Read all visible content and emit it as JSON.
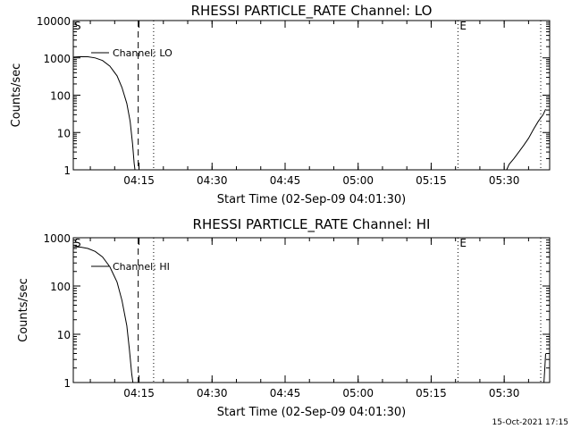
{
  "footer": "15-Oct-2021 17:15",
  "chart_data": [
    {
      "type": "line",
      "title": "RHESSI PARTICLE_RATE Channel: LO",
      "xlabel": "Start Time (02-Sep-09 04:01:30)",
      "ylabel": "Counts/sec",
      "yscale": "log",
      "xlim": [
        "04:01:30",
        "05:39:20"
      ],
      "ylim": [
        1,
        10000
      ],
      "xticks": [
        "04:15",
        "04:30",
        "04:45",
        "05:00",
        "05:15",
        "05:30"
      ],
      "yticks": [
        "1",
        "10",
        "100",
        "1000",
        "10000"
      ],
      "legend_position": "top-left",
      "legend": "Channel: LO",
      "markers": {
        "start": "S",
        "end": "E"
      },
      "vlines": [
        {
          "x": "04:14:50",
          "style": "dashed"
        },
        {
          "x": "04:18:00",
          "style": "dotted"
        },
        {
          "x": "05:20:30",
          "style": "dotted",
          "label": "E"
        },
        {
          "x": "05:37:30",
          "style": "dotted"
        }
      ],
      "series": [
        {
          "name": "Channel: LO",
          "segments": [
            [
              [
                "04:01:30",
                1050
              ],
              [
                "04:03:00",
                1080
              ],
              [
                "04:04:30",
                1070
              ],
              [
                "04:06:00",
                1000
              ],
              [
                "04:07:30",
                850
              ],
              [
                "04:09:00",
                600
              ],
              [
                "04:10:30",
                330
              ],
              [
                "04:11:30",
                160
              ],
              [
                "04:12:30",
                60
              ],
              [
                "04:13:10",
                20
              ],
              [
                "04:13:40",
                5
              ],
              [
                "04:14:00",
                1.5
              ],
              [
                "04:14:10",
                1
              ]
            ],
            [
              [
                "05:30:30",
                1
              ],
              [
                "05:31:00",
                1.4
              ],
              [
                "05:32:00",
                2
              ],
              [
                "05:33:00",
                3
              ],
              [
                "05:34:00",
                4.5
              ],
              [
                "05:35:00",
                7
              ],
              [
                "05:36:00",
                12
              ],
              [
                "05:37:00",
                20
              ],
              [
                "05:38:00",
                30
              ],
              [
                "05:38:30",
                42
              ]
            ]
          ]
        }
      ]
    },
    {
      "type": "line",
      "title": "RHESSI PARTICLE_RATE Channel: HI",
      "xlabel": "Start Time (02-Sep-09 04:01:30)",
      "ylabel": "Counts/sec",
      "yscale": "log",
      "xlim": [
        "04:01:30",
        "05:39:20"
      ],
      "ylim": [
        1,
        1000
      ],
      "xticks": [
        "04:15",
        "04:30",
        "04:45",
        "05:00",
        "05:15",
        "05:30"
      ],
      "yticks": [
        "1",
        "10",
        "100",
        "1000"
      ],
      "legend_position": "top-left",
      "legend": "Channel: HI",
      "markers": {
        "start": "S",
        "end": "E"
      },
      "vlines": [
        {
          "x": "04:14:50",
          "style": "dashed"
        },
        {
          "x": "04:18:00",
          "style": "dotted"
        },
        {
          "x": "05:20:30",
          "style": "dotted",
          "label": "E"
        },
        {
          "x": "05:37:30",
          "style": "dotted"
        }
      ],
      "series": [
        {
          "name": "Channel: HI",
          "segments": [
            [
              [
                "04:01:30",
                650
              ],
              [
                "04:03:00",
                640
              ],
              [
                "04:04:30",
                600
              ],
              [
                "04:06:00",
                520
              ],
              [
                "04:07:30",
                400
              ],
              [
                "04:09:00",
                250
              ],
              [
                "04:10:30",
                120
              ],
              [
                "04:11:30",
                50
              ],
              [
                "04:12:30",
                15
              ],
              [
                "04:13:00",
                5
              ],
              [
                "04:13:30",
                1.5
              ],
              [
                "04:13:45",
                1
              ]
            ],
            [
              [
                "05:38:10",
                1
              ],
              [
                "05:38:20",
                2
              ],
              [
                "05:38:30",
                4
              ]
            ]
          ]
        }
      ]
    }
  ]
}
